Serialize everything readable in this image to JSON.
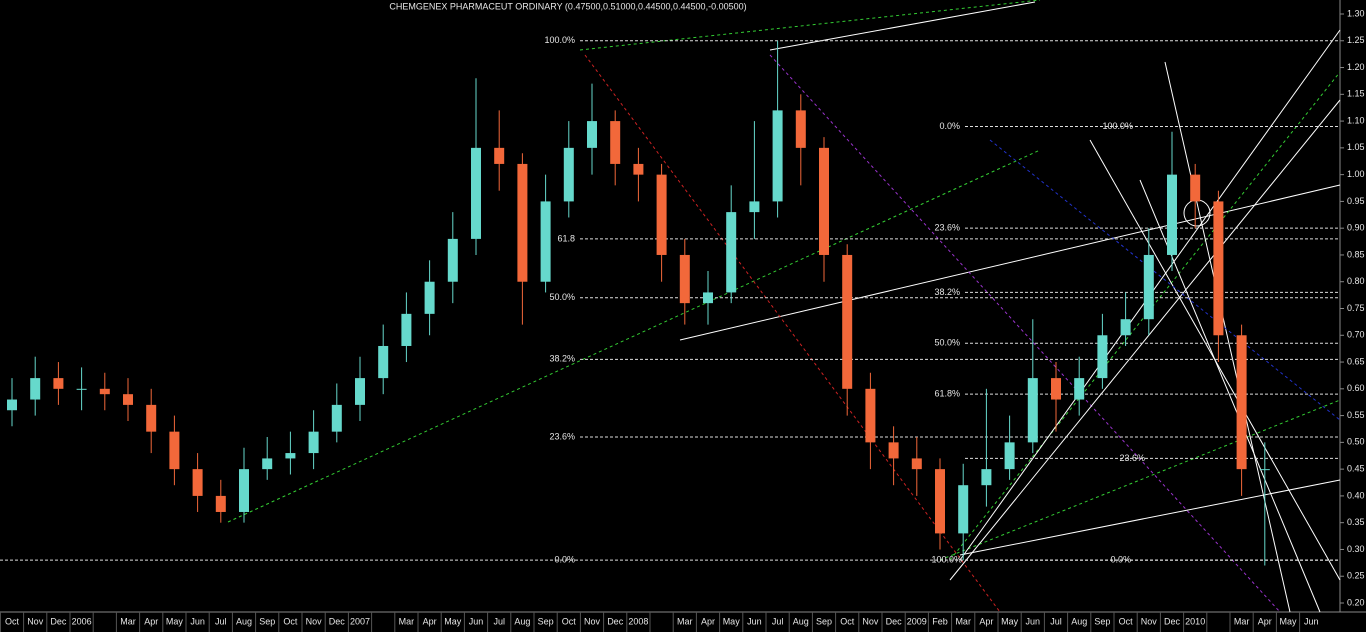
{
  "chart_data": {
    "type": "candlestick",
    "title": "CHEMGENEX PHARMACEUT ORDINARY (0.47500,0.51000,0.44500,0.44500,-0.00500)",
    "categories": [
      "Oct",
      "Nov",
      "Dec",
      "2006",
      null,
      "Mar",
      "Apr",
      "May",
      "Jun",
      "Jul",
      "Aug",
      "Sep",
      "Oct",
      "Nov",
      "Dec",
      "2007",
      null,
      "Mar",
      "Apr",
      "May",
      "Jun",
      "Jul",
      "Aug",
      "Sep",
      "Oct",
      "Nov",
      "Dec",
      "2008",
      null,
      "Mar",
      "Apr",
      "May",
      "Jun",
      "Jul",
      "Aug",
      "Sep",
      "Oct",
      "Nov",
      "Dec",
      "2009",
      "Feb",
      "Mar",
      "Apr",
      "May",
      "Jun",
      "Jul",
      "Aug",
      "Sep",
      "Oct",
      "Nov",
      "Dec",
      "2010",
      null,
      "Mar",
      "Apr",
      "May",
      "Jun"
    ],
    "open": [
      0.56,
      0.58,
      0.62,
      0.6,
      0.6,
      0.59,
      0.57,
      0.52,
      0.45,
      0.4,
      0.37,
      0.45,
      0.47,
      0.48,
      0.52,
      0.57,
      0.62,
      0.68,
      0.74,
      0.8,
      0.88,
      1.05,
      1.02,
      0.8,
      0.95,
      1.05,
      1.1,
      1.02,
      1.0,
      0.85,
      0.76,
      0.78,
      0.93,
      0.95,
      1.12,
      1.05,
      0.85,
      0.6,
      0.5,
      0.47,
      0.45,
      0.33,
      0.42,
      0.45,
      0.5,
      0.62,
      0.58,
      0.62,
      0.7,
      0.73,
      0.85,
      1.0,
      0.95,
      0.7,
      0.45,
      null,
      null
    ],
    "high": [
      0.62,
      0.66,
      0.65,
      0.64,
      0.63,
      0.62,
      0.6,
      0.55,
      0.48,
      0.43,
      0.49,
      0.51,
      0.52,
      0.56,
      0.61,
      0.66,
      0.72,
      0.78,
      0.84,
      0.93,
      1.18,
      1.12,
      1.04,
      1.0,
      1.1,
      1.17,
      1.12,
      1.05,
      1.02,
      0.88,
      0.82,
      0.98,
      1.1,
      1.25,
      1.15,
      1.07,
      0.87,
      0.63,
      0.53,
      0.51,
      0.47,
      0.46,
      0.6,
      0.55,
      0.73,
      0.65,
      0.66,
      0.74,
      0.78,
      0.9,
      1.08,
      1.02,
      0.97,
      0.72,
      0.5,
      null,
      null
    ],
    "low": [
      0.53,
      0.55,
      0.57,
      0.56,
      0.56,
      0.54,
      0.48,
      0.42,
      0.37,
      0.35,
      0.35,
      0.43,
      0.44,
      0.45,
      0.5,
      0.54,
      0.59,
      0.65,
      0.7,
      0.76,
      0.85,
      0.97,
      0.72,
      0.78,
      0.92,
      1.0,
      0.98,
      0.95,
      0.8,
      0.72,
      0.72,
      0.76,
      0.88,
      0.92,
      0.98,
      0.8,
      0.55,
      0.45,
      0.42,
      0.4,
      0.3,
      0.28,
      0.38,
      0.43,
      0.48,
      0.52,
      0.55,
      0.6,
      0.68,
      0.7,
      0.82,
      0.9,
      0.65,
      0.4,
      0.27,
      null,
      null
    ],
    "close": [
      0.58,
      0.62,
      0.6,
      0.6,
      0.59,
      0.57,
      0.52,
      0.45,
      0.4,
      0.37,
      0.45,
      0.47,
      0.48,
      0.52,
      0.57,
      0.62,
      0.68,
      0.74,
      0.8,
      0.88,
      1.05,
      1.02,
      0.8,
      0.95,
      1.05,
      1.1,
      1.02,
      1.0,
      0.85,
      0.76,
      0.78,
      0.93,
      0.95,
      1.12,
      1.05,
      0.85,
      0.6,
      0.5,
      0.47,
      0.45,
      0.33,
      0.42,
      0.45,
      0.5,
      0.62,
      0.58,
      0.62,
      0.7,
      0.73,
      0.85,
      1.0,
      0.95,
      0.7,
      0.45,
      0.45,
      null,
      null
    ],
    "up_color": "#66d9cc",
    "down_color": "#f2683a",
    "ylim": [
      0.2,
      1.3
    ],
    "yticks": [
      {
        "value": 0.2,
        "label": "0.20"
      },
      {
        "value": 0.25,
        "label": "0.25"
      },
      {
        "value": 0.3,
        "label": "0.30"
      },
      {
        "value": 0.35,
        "label": "0.35"
      },
      {
        "value": 0.4,
        "label": "0.40"
      },
      {
        "value": 0.45,
        "label": "0.45"
      },
      {
        "value": 0.5,
        "label": "0.50"
      },
      {
        "value": 0.55,
        "label": "0.55"
      },
      {
        "value": 0.6,
        "label": "0.60"
      },
      {
        "value": 0.65,
        "label": "0.65"
      },
      {
        "value": 0.7,
        "label": "0.70"
      },
      {
        "value": 0.75,
        "label": "0.75"
      },
      {
        "value": 0.8,
        "label": "0.80"
      },
      {
        "value": 0.85,
        "label": "0.85"
      },
      {
        "value": 0.9,
        "label": "0.90"
      },
      {
        "value": 0.95,
        "label": "0.95"
      },
      {
        "value": 1.0,
        "label": "1.00"
      },
      {
        "value": 1.05,
        "label": "1.05"
      },
      {
        "value": 1.1,
        "label": "1.10"
      },
      {
        "value": 1.15,
        "label": "1.15"
      },
      {
        "value": 1.2,
        "label": "1.20"
      },
      {
        "value": 1.25,
        "label": "1.25"
      },
      {
        "value": 1.3,
        "label": "1.30"
      }
    ],
    "fib_left": [
      {
        "label": "100.0%",
        "value": 1.25
      },
      {
        "label": "61.8",
        "value": 0.88
      },
      {
        "label": "50.0%",
        "value": 0.77
      },
      {
        "label": "38.2%",
        "value": 0.655
      },
      {
        "label": "23.6%",
        "value": 0.51
      },
      {
        "label": "0.0%",
        "value": 0.28
      }
    ],
    "fib_right": [
      {
        "label": "0.0%",
        "value": 1.09
      },
      {
        "label": "100.0%",
        "value": 1.09
      },
      {
        "label": "23.6%",
        "value": 0.9
      },
      {
        "label": "38.2%",
        "value": 0.78
      },
      {
        "label": "50.0%",
        "value": 0.685
      },
      {
        "label": "61.8%",
        "value": 0.59
      },
      {
        "label": "23.6%",
        "value": 0.47
      },
      {
        "label": "100.0%",
        "value": 0.28
      },
      {
        "label": "0.0%",
        "value": 0.28
      }
    ]
  }
}
